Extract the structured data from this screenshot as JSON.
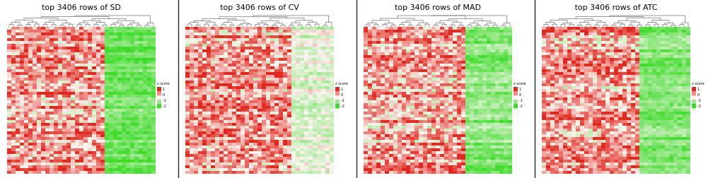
{
  "panels": [
    {
      "title": "top 3406 rows of SD"
    },
    {
      "title": "top 3406 rows of CV"
    },
    {
      "title": "top 3406 rows of MAD"
    },
    {
      "title": "top 3406 rows of ATC"
    }
  ],
  "legend": {
    "title": "z score",
    "ticks": [
      "1",
      "0",
      "-1",
      "-2"
    ]
  }
}
